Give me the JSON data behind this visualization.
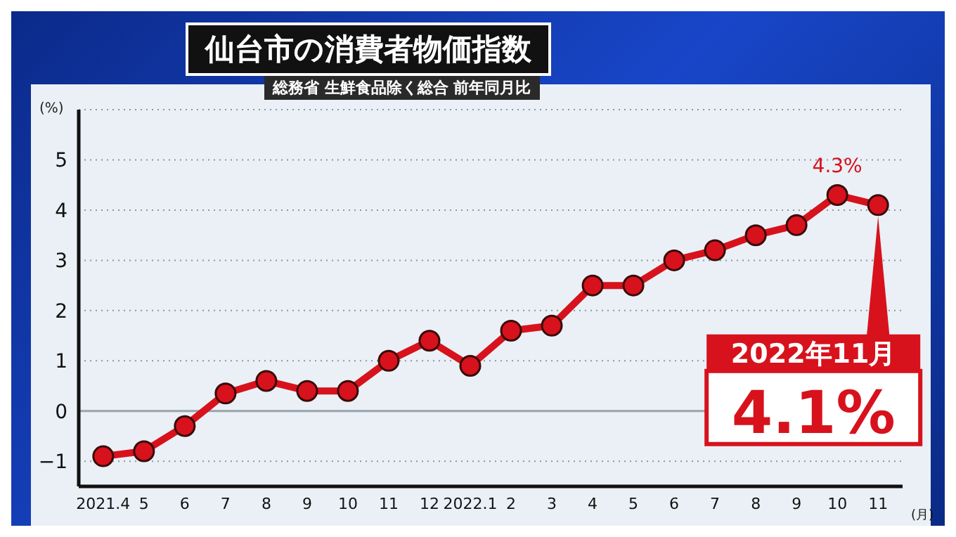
{
  "chart_data": {
    "type": "line",
    "title": "仙台市の消費者物価指数",
    "subtitle": "総務省 生鮮食品除く総合 前年同月比",
    "ylabel": "(%)",
    "xlabel": "(月)",
    "categories": [
      "2021.4",
      "5",
      "6",
      "7",
      "8",
      "9",
      "10",
      "11",
      "12",
      "2022.1",
      "2",
      "3",
      "4",
      "5",
      "6",
      "7",
      "8",
      "9",
      "10",
      "11"
    ],
    "series": [
      {
        "color": "#d7121c",
        "values": [
          -0.9,
          -0.8,
          -0.3,
          0.35,
          0.6,
          0.4,
          0.4,
          1.0,
          1.4,
          0.9,
          1.6,
          1.7,
          2.5,
          2.5,
          3.0,
          3.2,
          3.5,
          3.7,
          4.3,
          4.1
        ]
      }
    ],
    "ylim": [
      -1.5,
      6
    ],
    "yticks": [
      -1,
      0,
      1,
      2,
      3,
      4,
      5
    ],
    "grid": "y",
    "marker": "circle",
    "line_style": "solid",
    "legend": false,
    "ref_lines": [
      {
        "axis": "y",
        "value": 0,
        "color": "#9aa4ae"
      }
    ],
    "annotations": [
      "4.3%",
      "2022年11月",
      "4.1%"
    ]
  }
}
